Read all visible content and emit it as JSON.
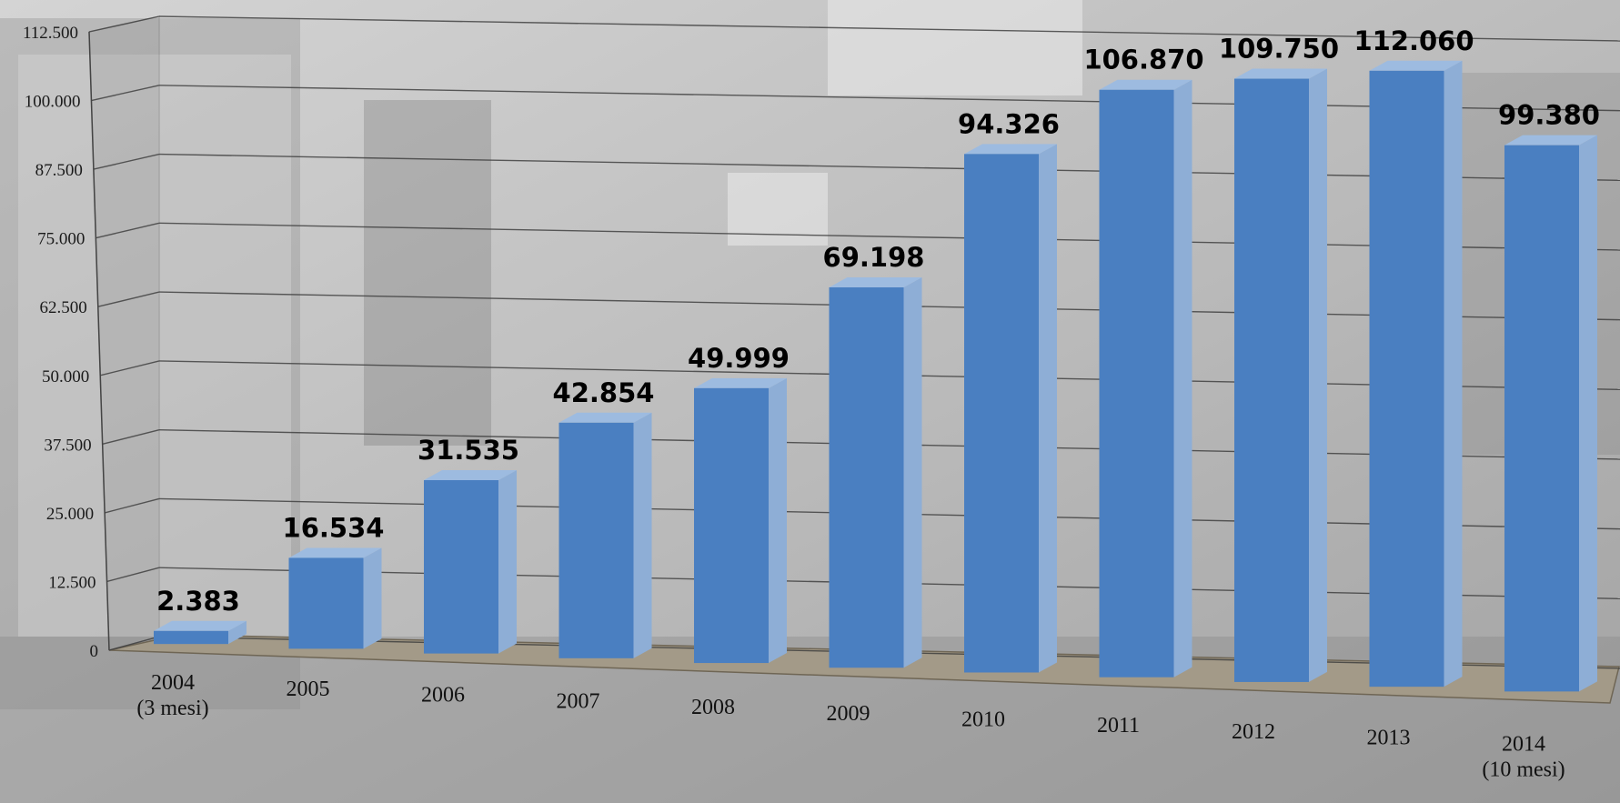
{
  "chart_data": {
    "type": "bar",
    "title": "",
    "xlabel": "",
    "ylabel": "",
    "categories": [
      [
        "2004",
        "(3 mesi)"
      ],
      [
        "2005"
      ],
      [
        "2006"
      ],
      [
        "2007"
      ],
      [
        "2008"
      ],
      [
        "2009"
      ],
      [
        "2010"
      ],
      [
        "2011"
      ],
      [
        "2012"
      ],
      [
        "2013"
      ],
      [
        "2014",
        "(10 mesi)"
      ]
    ],
    "values": [
      2383,
      16534,
      31535,
      42854,
      49999,
      69198,
      94326,
      106870,
      109750,
      112060,
      99380
    ],
    "value_labels": [
      "2.383",
      "16.534",
      "31.535",
      "42.854",
      "49.999",
      "69.198",
      "94.326",
      "106.870",
      "109.750",
      "112.060",
      "99.380"
    ],
    "yticks": [
      "0",
      "12.500",
      "25.000",
      "37.500",
      "50.000",
      "62.500",
      "75.000",
      "87.500",
      "100.000",
      "112.500"
    ],
    "ytick_values": [
      0,
      12500,
      25000,
      37500,
      50000,
      62500,
      75000,
      87500,
      100000,
      112500
    ],
    "ylim": [
      0,
      112500
    ],
    "grid": true,
    "legend": "none",
    "style": "3d-perspective",
    "colors": {
      "bar_front": "#4a7fc1",
      "bar_side": "#8eaed6",
      "bar_top": "#9dbbe0",
      "floor": "#a39a88",
      "grid": "#3a3a3a",
      "wall": "#8f8f8f"
    }
  }
}
